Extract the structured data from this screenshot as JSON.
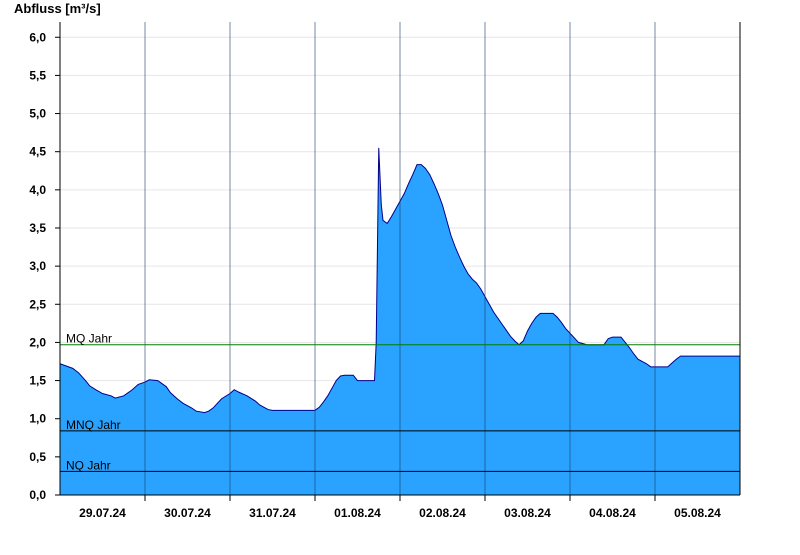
{
  "chart_data": {
    "type": "area",
    "ylabel": "Abfluss [m³/s]",
    "ylim": [
      0,
      6.2
    ],
    "y_ticks": [
      "0,0",
      "0,5",
      "1,0",
      "1,5",
      "2,0",
      "2,5",
      "3,0",
      "3,5",
      "4,0",
      "4,5",
      "5,0",
      "5,5",
      "6,0"
    ],
    "y_tick_values": [
      0,
      0.5,
      1,
      1.5,
      2,
      2.5,
      3,
      3.5,
      4,
      4.5,
      5,
      5.5,
      6
    ],
    "x_range_days": [
      0,
      8
    ],
    "day_boundaries": [
      1,
      2,
      3,
      4,
      5,
      6,
      7
    ],
    "x_labels": [
      "29.07.24",
      "30.07.24",
      "31.07.24",
      "01.08.24",
      "02.08.24",
      "03.08.24",
      "04.08.24",
      "05.08.24"
    ],
    "grid": true,
    "colors": {
      "fill": "#29a3ff",
      "stroke": "#00008b",
      "mq": "#008000",
      "ref": "#000000",
      "grid": "#e6e6e6"
    },
    "reference_lines": [
      {
        "label": "MQ Jahr",
        "value": 1.97
      },
      {
        "label": "MNQ Jahr",
        "value": 0.84
      },
      {
        "label": "NQ Jahr",
        "value": 0.31
      }
    ],
    "series": [
      {
        "x": [
          0,
          0.15,
          0.22,
          0.3,
          0.35,
          0.42,
          0.5,
          0.6,
          0.65,
          0.75,
          0.85,
          0.92,
          1.0,
          1.05,
          1.15,
          1.25,
          1.3,
          1.38,
          1.45,
          1.55,
          1.6,
          1.7,
          1.75,
          1.8,
          1.85,
          1.9,
          2.0,
          2.05,
          2.1,
          2.2,
          2.3,
          2.35,
          2.4,
          2.45,
          2.5,
          2.55,
          2.6,
          2.7,
          2.75,
          2.8,
          2.9,
          3.0,
          3.05,
          3.1,
          3.15,
          3.2,
          3.25,
          3.3,
          3.35,
          3.4,
          3.45,
          3.5,
          3.55,
          3.6,
          3.65,
          3.7,
          3.72,
          3.75,
          3.78,
          3.8,
          3.85,
          3.9,
          3.95,
          4.0,
          4.05,
          4.1,
          4.15,
          4.2,
          4.25,
          4.3,
          4.35,
          4.4,
          4.45,
          4.5,
          4.55,
          4.6,
          4.65,
          4.7,
          4.75,
          4.8,
          4.85,
          4.9,
          4.95,
          5.0,
          5.05,
          5.1,
          5.15,
          5.2,
          5.25,
          5.3,
          5.35,
          5.4,
          5.45,
          5.5,
          5.55,
          5.6,
          5.65,
          5.7,
          5.75,
          5.8,
          5.85,
          5.9,
          5.95,
          6.0,
          6.05,
          6.1,
          6.2,
          6.3,
          6.35,
          6.4,
          6.45,
          6.5,
          6.55,
          6.6,
          6.65,
          6.7,
          6.75,
          6.8,
          6.9,
          6.95,
          7.0,
          7.05,
          7.1,
          7.15,
          7.2,
          7.25,
          7.3,
          7.35,
          7.4,
          7.45,
          7.5,
          7.55,
          7.6,
          7.65,
          7.7,
          7.75,
          7.8,
          7.85,
          7.9,
          7.95,
          8.0
        ],
        "y": [
          1.72,
          1.66,
          1.6,
          1.5,
          1.43,
          1.38,
          1.33,
          1.3,
          1.27,
          1.3,
          1.38,
          1.45,
          1.48,
          1.51,
          1.5,
          1.42,
          1.34,
          1.26,
          1.2,
          1.14,
          1.1,
          1.08,
          1.1,
          1.14,
          1.2,
          1.26,
          1.33,
          1.38,
          1.35,
          1.3,
          1.23,
          1.18,
          1.15,
          1.12,
          1.11,
          1.11,
          1.11,
          1.11,
          1.11,
          1.11,
          1.11,
          1.11,
          1.15,
          1.22,
          1.3,
          1.4,
          1.5,
          1.56,
          1.57,
          1.57,
          1.57,
          1.5,
          1.5,
          1.5,
          1.5,
          1.5,
          2.0,
          4.55,
          3.8,
          3.6,
          3.56,
          3.65,
          3.75,
          3.85,
          3.95,
          4.08,
          4.2,
          4.33,
          4.33,
          4.28,
          4.2,
          4.08,
          3.95,
          3.8,
          3.6,
          3.4,
          3.25,
          3.12,
          3.0,
          2.9,
          2.83,
          2.78,
          2.7,
          2.6,
          2.5,
          2.4,
          2.32,
          2.24,
          2.16,
          2.08,
          2.02,
          1.97,
          2.02,
          2.15,
          2.25,
          2.33,
          2.38,
          2.38,
          2.38,
          2.38,
          2.33,
          2.26,
          2.18,
          2.12,
          2.06,
          2.0,
          1.97,
          1.97,
          1.97,
          1.97,
          2.05,
          2.07,
          2.07,
          2.07,
          2.0,
          1.93,
          1.85,
          1.78,
          1.72,
          1.68,
          1.68,
          1.68,
          1.68,
          1.68,
          1.73,
          1.78,
          1.82,
          1.82,
          1.82,
          1.82,
          1.82,
          1.82,
          1.82,
          1.82,
          1.82,
          1.82,
          1.82,
          1.82,
          1.82,
          1.82,
          1.82
        ]
      }
    ]
  }
}
